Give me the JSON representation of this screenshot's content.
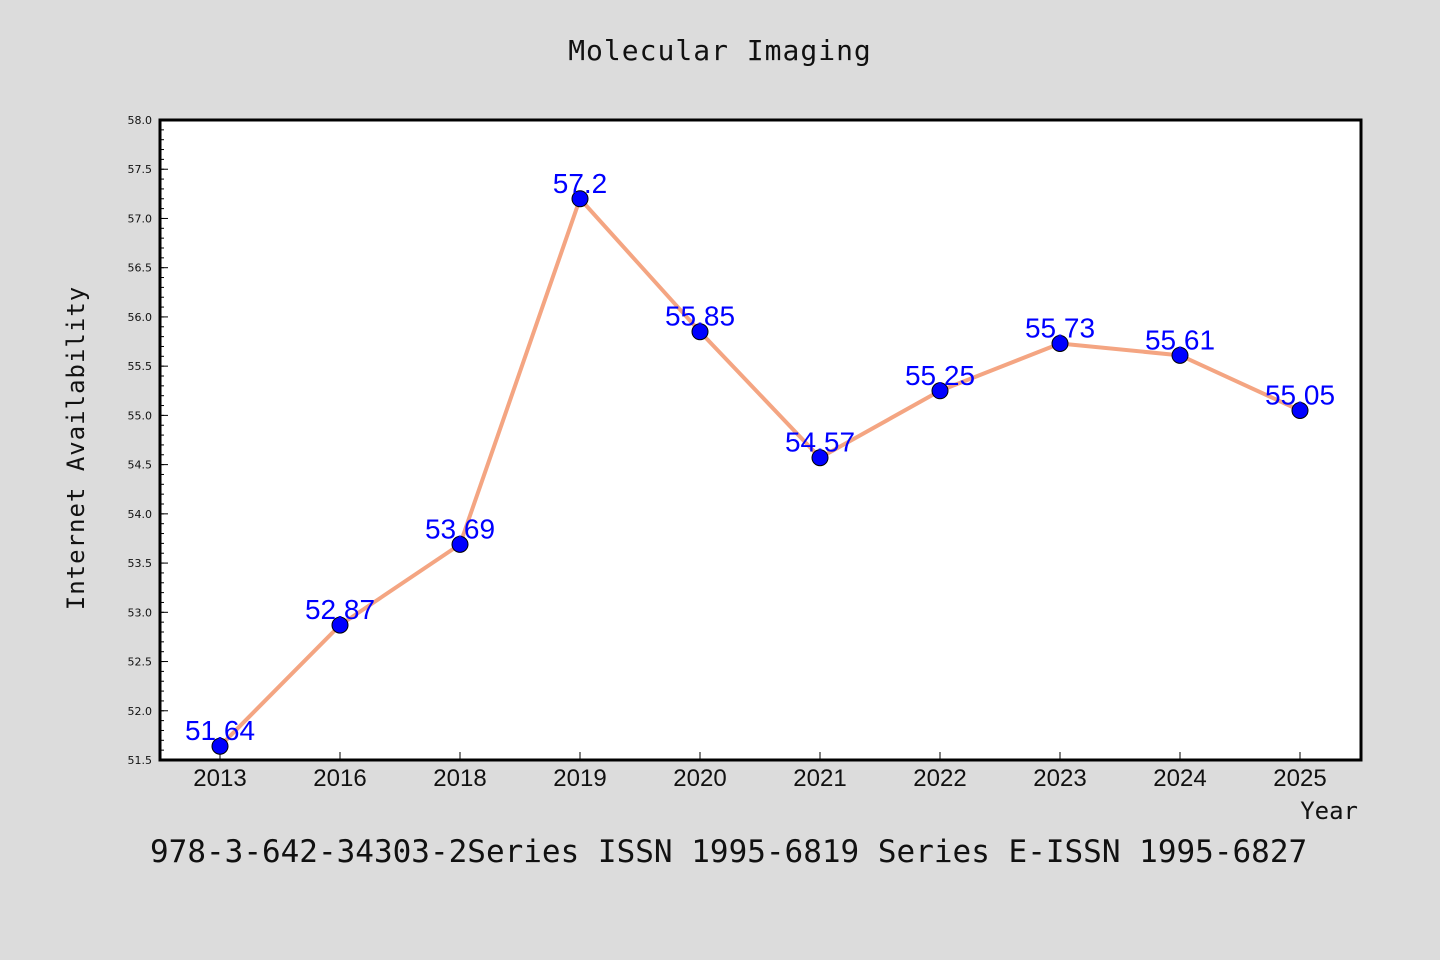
{
  "chart_data": {
    "type": "line",
    "title": "Molecular Imaging",
    "xlabel": "Year",
    "ylabel": "Internet Availability",
    "categories": [
      "2013",
      "2016",
      "2018",
      "2019",
      "2020",
      "2021",
      "2022",
      "2023",
      "2024",
      "2025"
    ],
    "series": [
      {
        "values": [
          51.64,
          52.87,
          53.69,
          57.2,
          55.85,
          54.57,
          55.25,
          55.73,
          55.61,
          55.05
        ]
      }
    ],
    "data_labels": [
      "51.64",
      "52.87",
      "53.69",
      "57.2",
      "55.85",
      "54.57",
      "55.25",
      "55.73",
      "55.61",
      "55.05"
    ],
    "ylim": [
      51.5,
      58.0
    ],
    "yticks": [
      "51.5",
      "52.0",
      "52.5",
      "53.0",
      "53.5",
      "54.0",
      "54.5",
      "55.0",
      "55.5",
      "56.0",
      "56.5",
      "57.0",
      "57.5",
      "58.0"
    ],
    "grid": false,
    "line_color": "#f4a582",
    "marker_color": "#0000ff",
    "label_color": "#0000ff",
    "background_color": "#dcdcdc",
    "plot_background_color": "#ffffff"
  },
  "footer": {
    "text": "978-3-642-34303-2Series ISSN 1995-6819 Series E-ISSN 1995-6827"
  }
}
